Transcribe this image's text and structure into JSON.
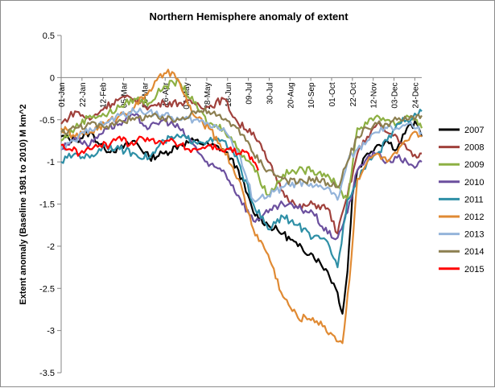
{
  "chart_data": {
    "type": "line",
    "title": "Northern Hemisphere anomaly of extent",
    "ylabel": "Extent anomaly  (Baseline 1981 to 2010) M km^2",
    "xlabel": "",
    "ylim": [
      -3.5,
      0.5
    ],
    "y_ticks": [
      "0.5",
      "0",
      "-0.5",
      "-1",
      "-1.5",
      "-2",
      "-2.5",
      "-3",
      "-3.5"
    ],
    "x_tick_labels": [
      "01-Jan",
      "22-Jan",
      "12-Feb",
      "05-Mar",
      "26-Mar",
      "16-Apr",
      "07-May",
      "28-May",
      "18-Jun",
      "09-Jul",
      "30-Jul",
      "20-Aug",
      "10-Sep",
      "01-Oct",
      "22-Oct",
      "12-Nov",
      "03-Dec",
      "24-Dec"
    ],
    "x_tick_days": [
      1,
      22,
      43,
      64,
      85,
      106,
      127,
      148,
      169,
      190,
      211,
      232,
      253,
      274,
      295,
      316,
      337,
      358
    ],
    "x_range_days": [
      1,
      365
    ],
    "grid": false,
    "legend_position": "right",
    "series": [
      {
        "name": "2007",
        "color": "#000000",
        "x": [
          1,
          15,
          30,
          45,
          60,
          75,
          90,
          105,
          120,
          135,
          150,
          165,
          180,
          195,
          210,
          225,
          240,
          255,
          270,
          280,
          285,
          290,
          295,
          300,
          310,
          320,
          330,
          340,
          350,
          360,
          365
        ],
        "y": [
          -0.7,
          -0.75,
          -0.65,
          -0.85,
          -0.85,
          -0.75,
          -0.95,
          -0.9,
          -0.8,
          -0.75,
          -0.8,
          -0.85,
          -1.1,
          -1.6,
          -1.75,
          -1.85,
          -2.0,
          -2.1,
          -2.3,
          -2.55,
          -2.8,
          -2.3,
          -1.4,
          -1.1,
          -0.9,
          -0.8,
          -0.75,
          -0.85,
          -0.6,
          -0.55,
          -0.7
        ]
      },
      {
        "name": "2008",
        "color": "#A0413C",
        "x": [
          1,
          15,
          30,
          45,
          60,
          75,
          90,
          105,
          120,
          135,
          150,
          165,
          180,
          195,
          210,
          225,
          240,
          255,
          270,
          280,
          290,
          300,
          310,
          320,
          330,
          340,
          350,
          360,
          365
        ],
        "y": [
          -0.55,
          -0.4,
          -0.5,
          -0.35,
          -0.25,
          -0.25,
          -0.35,
          -0.3,
          -0.3,
          -0.3,
          -0.35,
          -0.25,
          -0.55,
          -0.65,
          -1.0,
          -1.35,
          -1.55,
          -1.5,
          -1.55,
          -1.85,
          -1.4,
          -0.9,
          -0.7,
          -0.55,
          -0.65,
          -0.7,
          -0.85,
          -0.95,
          -0.9
        ]
      },
      {
        "name": "2009",
        "color": "#8DB043",
        "x": [
          1,
          15,
          30,
          45,
          60,
          75,
          90,
          105,
          120,
          135,
          150,
          165,
          180,
          195,
          210,
          225,
          240,
          255,
          270,
          280,
          290,
          300,
          310,
          320,
          330,
          340,
          350,
          360,
          365
        ],
        "y": [
          -0.75,
          -0.6,
          -0.45,
          -0.45,
          -0.35,
          -0.25,
          -0.3,
          -0.1,
          -0.05,
          -0.3,
          -0.55,
          -0.6,
          -0.85,
          -1.05,
          -1.4,
          -1.15,
          -1.1,
          -1.1,
          -1.15,
          -1.3,
          -1.45,
          -0.6,
          -0.55,
          -0.45,
          -0.5,
          -0.55,
          -0.45,
          -0.5,
          -0.6
        ]
      },
      {
        "name": "2010",
        "color": "#6B4F9E",
        "x": [
          1,
          15,
          30,
          45,
          60,
          75,
          90,
          105,
          120,
          135,
          150,
          165,
          180,
          195,
          210,
          225,
          240,
          255,
          270,
          280,
          290,
          300,
          310,
          320,
          330,
          340,
          350,
          360,
          365
        ],
        "y": [
          -0.85,
          -0.7,
          -0.8,
          -0.6,
          -0.55,
          -0.45,
          -0.6,
          -0.5,
          -0.6,
          -0.8,
          -1.05,
          -1.1,
          -1.4,
          -1.7,
          -1.6,
          -1.5,
          -1.55,
          -1.6,
          -1.85,
          -1.9,
          -1.6,
          -1.1,
          -0.95,
          -0.9,
          -1.0,
          -0.95,
          -1.0,
          -1.05,
          -1.0
        ]
      },
      {
        "name": "2011",
        "color": "#2E8FA6",
        "x": [
          1,
          15,
          30,
          45,
          60,
          75,
          90,
          105,
          120,
          135,
          150,
          165,
          180,
          195,
          210,
          225,
          240,
          255,
          270,
          280,
          290,
          300,
          310,
          320,
          330,
          340,
          350,
          360,
          365
        ],
        "y": [
          -1.0,
          -0.9,
          -0.95,
          -0.8,
          -0.85,
          -0.9,
          -0.95,
          -0.75,
          -0.7,
          -0.75,
          -0.75,
          -0.75,
          -1.0,
          -1.5,
          -1.8,
          -1.65,
          -1.75,
          -1.9,
          -1.95,
          -2.25,
          -1.45,
          -1.2,
          -1.0,
          -0.9,
          -0.75,
          -0.55,
          -0.5,
          -0.45,
          -0.4
        ]
      },
      {
        "name": "2012",
        "color": "#E08A33",
        "x": [
          1,
          15,
          30,
          45,
          60,
          75,
          90,
          105,
          115,
          125,
          135,
          150,
          165,
          180,
          195,
          210,
          225,
          240,
          255,
          265,
          275,
          285,
          292,
          300,
          310,
          320,
          330,
          340,
          350,
          360,
          365
        ],
        "y": [
          -0.6,
          -0.7,
          -0.65,
          -0.55,
          -0.45,
          -0.35,
          -0.15,
          0.05,
          0.05,
          -0.2,
          -0.45,
          -0.6,
          -0.85,
          -1.2,
          -1.8,
          -2.1,
          -2.6,
          -2.85,
          -2.85,
          -2.95,
          -3.05,
          -3.15,
          -2.4,
          -1.2,
          -1.0,
          -0.9,
          -1.0,
          -0.9,
          -0.75,
          -0.65,
          -0.7
        ]
      },
      {
        "name": "2013",
        "color": "#94B4DA",
        "x": [
          1,
          15,
          30,
          45,
          60,
          75,
          90,
          105,
          120,
          135,
          150,
          165,
          180,
          195,
          210,
          225,
          240,
          255,
          270,
          280,
          290,
          300,
          310,
          320,
          330,
          340,
          350,
          360,
          365
        ],
        "y": [
          -0.85,
          -0.75,
          -0.6,
          -0.55,
          -0.45,
          -0.4,
          -0.4,
          -0.45,
          -0.5,
          -0.5,
          -0.55,
          -0.6,
          -0.9,
          -1.45,
          -1.4,
          -1.3,
          -1.25,
          -1.3,
          -1.3,
          -1.45,
          -1.0,
          -0.85,
          -0.75,
          -0.65,
          -0.6,
          -0.6,
          -0.55,
          -0.6,
          -0.65
        ]
      },
      {
        "name": "2014",
        "color": "#8C7F50",
        "x": [
          1,
          15,
          30,
          45,
          60,
          75,
          90,
          105,
          120,
          135,
          150,
          165,
          180,
          195,
          210,
          225,
          240,
          255,
          270,
          280,
          290,
          300,
          310,
          320,
          330,
          340,
          350,
          360,
          365
        ],
        "y": [
          -0.65,
          -0.6,
          -0.55,
          -0.6,
          -0.5,
          -0.5,
          -0.45,
          -0.5,
          -0.5,
          -0.4,
          -0.4,
          -0.5,
          -0.6,
          -0.9,
          -1.1,
          -1.2,
          -1.25,
          -1.2,
          -1.25,
          -1.3,
          -1.0,
          -0.7,
          -0.6,
          -0.55,
          -0.55,
          -0.5,
          -0.5,
          -0.45,
          -0.45
        ]
      },
      {
        "name": "2015",
        "color": "#FF0000",
        "x": [
          1,
          10,
          20,
          30,
          40,
          50,
          60,
          70,
          80,
          90,
          100,
          110,
          120,
          130,
          140,
          150,
          160,
          170,
          180,
          190,
          195,
          200
        ],
        "y": [
          -0.8,
          -0.85,
          -0.9,
          -0.85,
          -0.8,
          -0.8,
          -0.7,
          -0.8,
          -0.7,
          -0.75,
          -0.75,
          -0.75,
          -0.8,
          -0.85,
          -0.85,
          -0.8,
          -0.85,
          -0.85,
          -0.9,
          -0.9,
          -1.0,
          -1.1
        ]
      }
    ]
  }
}
